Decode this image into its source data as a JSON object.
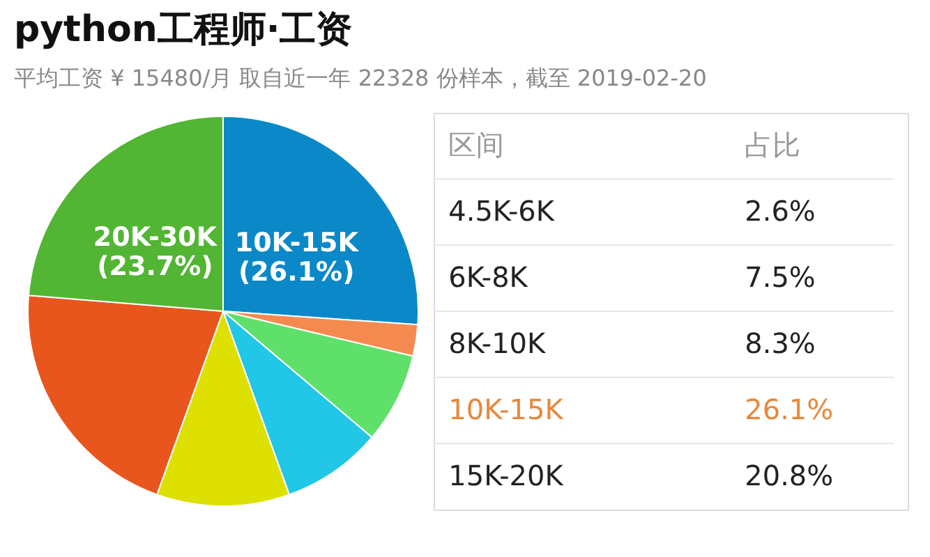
{
  "chart_data": [
    {
      "type": "pie",
      "title": "python工程师·工资",
      "subtitle": "平均工资 ¥ 15480/月  取自近一年 22328 份样本，截至 2019-02-20",
      "categories": [
        "10K-15K",
        null,
        null,
        null,
        null,
        null,
        "20K-30K"
      ],
      "value_labels": [
        "(26.1%)",
        null,
        null,
        null,
        null,
        null,
        "(23.7%)"
      ],
      "values": [
        26.1,
        2.6,
        7.5,
        8.3,
        11.0,
        20.8,
        23.7
      ],
      "colors": [
        "#0a88c8",
        "#f58a50",
        "#5fe06a",
        "#22c6e6",
        "#dde000",
        "#e8561e",
        "#52b533"
      ],
      "legend": false
    },
    {
      "type": "other",
      "categories": [
        "4.5K-6K",
        "6K-8K",
        "8K-10K",
        "10K-15K",
        "15K-20K"
      ],
      "value_labels": [
        "2.6%",
        "7.5%",
        "8.3%",
        "26.1%",
        "20.8%"
      ],
      "colors": [
        "#222222",
        "#222222",
        "#222222",
        "#e8873a",
        "#222222"
      ],
      "annotations": [
        "区间",
        "占比"
      ]
    }
  ]
}
